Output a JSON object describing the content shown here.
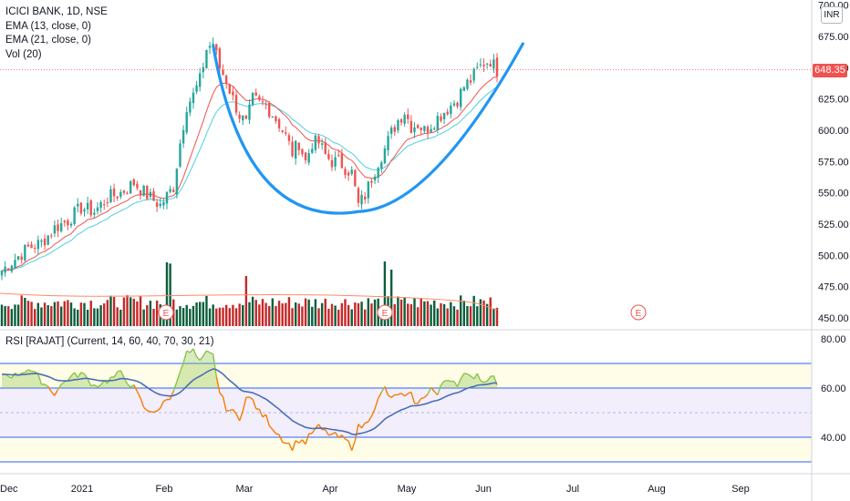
{
  "legend": {
    "symbol": "ICICI BANK, 1D, NSE",
    "ema13": "EMA (13, close, 0)",
    "ema21": "EMA (21, close, 0)",
    "vol": "Vol (20)"
  },
  "rsi_legend": "RSI [RAJAT] (Current, 14, 60, 40, 70, 30, 21)",
  "currency": "INR",
  "last_price": "648.35",
  "price_axis": {
    "ticks": [
      "700.00",
      "675.00",
      "650.00",
      "625.00",
      "600.00",
      "575.00",
      "550.00",
      "525.00",
      "500.00",
      "475.00",
      "450.00"
    ]
  },
  "rsi_axis": {
    "ticks": [
      "80.00",
      "60.00",
      "40.00"
    ]
  },
  "time_axis": {
    "labels": [
      "Dec",
      "2021",
      "Feb",
      "Mar",
      "Apr",
      "May",
      "Jun",
      "Jul",
      "Aug",
      "Sep"
    ]
  },
  "earnings_marker": "E",
  "colors": {
    "up": "#26a69a",
    "down": "#ef5350",
    "vol_up": "#0b5e3c",
    "vol_down": "#c62828",
    "ema13": "#ef5350",
    "ema21": "#4dd0e1",
    "cup": "#2196f3",
    "rsi_above": "#8bc34a",
    "rsi_below": "#f57c00",
    "rsi_signal": "#4a6fb5",
    "band_outer": "#fffde7",
    "band_inner": "#f3eefc"
  },
  "chart_data": {
    "type": "candlestick",
    "title": "ICICI BANK, 1D, NSE",
    "price_range": [
      450,
      700
    ],
    "price_anchors": [
      [
        0,
        488
      ],
      [
        4,
        497
      ],
      [
        8,
        506
      ],
      [
        12,
        510
      ],
      [
        16,
        522
      ],
      [
        20,
        528
      ],
      [
        24,
        538
      ],
      [
        28,
        535
      ],
      [
        32,
        546
      ],
      [
        36,
        550
      ],
      [
        40,
        558
      ],
      [
        44,
        548
      ],
      [
        48,
        540
      ],
      [
        52,
        555
      ],
      [
        54,
        590
      ],
      [
        56,
        620
      ],
      [
        58,
        628
      ],
      [
        60,
        640
      ],
      [
        62,
        665
      ],
      [
        64,
        670
      ],
      [
        66,
        650
      ],
      [
        68,
        640
      ],
      [
        70,
        625
      ],
      [
        72,
        612
      ],
      [
        74,
        605
      ],
      [
        76,
        625
      ],
      [
        78,
        622
      ],
      [
        80,
        620
      ],
      [
        82,
        613
      ],
      [
        84,
        605
      ],
      [
        86,
        595
      ],
      [
        88,
        582
      ],
      [
        90,
        590
      ],
      [
        92,
        575
      ],
      [
        94,
        590
      ],
      [
        96,
        590
      ],
      [
        98,
        580
      ],
      [
        100,
        575
      ],
      [
        102,
        575
      ],
      [
        104,
        570
      ],
      [
        106,
        566
      ],
      [
        108,
        540
      ],
      [
        110,
        548
      ],
      [
        112,
        562
      ],
      [
        114,
        575
      ],
      [
        116,
        585
      ],
      [
        118,
        598
      ],
      [
        120,
        608
      ],
      [
        122,
        615
      ],
      [
        124,
        603
      ],
      [
        126,
        605
      ],
      [
        128,
        600
      ],
      [
        130,
        605
      ],
      [
        132,
        610
      ],
      [
        134,
        615
      ],
      [
        136,
        620
      ],
      [
        138,
        625
      ],
      [
        140,
        635
      ],
      [
        142,
        640
      ],
      [
        144,
        648
      ],
      [
        146,
        654
      ],
      [
        148,
        656
      ],
      [
        150,
        648
      ]
    ],
    "rsi_anchors": [
      [
        0,
        66
      ],
      [
        4,
        65
      ],
      [
        8,
        68
      ],
      [
        12,
        63
      ],
      [
        16,
        58
      ],
      [
        20,
        64
      ],
      [
        24,
        66
      ],
      [
        28,
        61
      ],
      [
        32,
        63
      ],
      [
        36,
        66
      ],
      [
        40,
        60
      ],
      [
        44,
        50
      ],
      [
        48,
        52
      ],
      [
        52,
        58
      ],
      [
        54,
        68
      ],
      [
        56,
        74
      ],
      [
        58,
        75
      ],
      [
        60,
        70
      ],
      [
        62,
        74
      ],
      [
        64,
        73
      ],
      [
        66,
        58
      ],
      [
        68,
        52
      ],
      [
        70,
        50
      ],
      [
        72,
        48
      ],
      [
        74,
        56
      ],
      [
        76,
        55
      ],
      [
        78,
        50
      ],
      [
        80,
        48
      ],
      [
        82,
        44
      ],
      [
        84,
        41
      ],
      [
        86,
        38
      ],
      [
        88,
        36
      ],
      [
        90,
        39
      ],
      [
        92,
        38
      ],
      [
        94,
        42
      ],
      [
        96,
        44
      ],
      [
        98,
        42
      ],
      [
        100,
        41
      ],
      [
        102,
        40
      ],
      [
        104,
        39
      ],
      [
        106,
        36
      ],
      [
        108,
        44
      ],
      [
        110,
        45
      ],
      [
        112,
        50
      ],
      [
        114,
        55
      ],
      [
        116,
        60
      ],
      [
        118,
        55
      ],
      [
        120,
        58
      ],
      [
        122,
        56
      ],
      [
        124,
        57
      ],
      [
        126,
        53
      ],
      [
        128,
        57
      ],
      [
        130,
        60
      ],
      [
        132,
        57
      ],
      [
        134,
        63
      ],
      [
        136,
        64
      ],
      [
        138,
        62
      ],
      [
        140,
        65
      ],
      [
        142,
        64
      ],
      [
        144,
        66
      ],
      [
        146,
        62
      ],
      [
        148,
        66
      ],
      [
        150,
        62
      ]
    ],
    "rsi_levels": {
      "upper": 70,
      "mid_upper": 60,
      "mid_lower": 40,
      "lower": 30
    },
    "rsi_range": [
      27,
      83
    ],
    "cup_pattern": {
      "start": [
        64,
        668
      ],
      "bottom": [
        108,
        535
      ],
      "end": [
        158,
        670
      ]
    }
  }
}
